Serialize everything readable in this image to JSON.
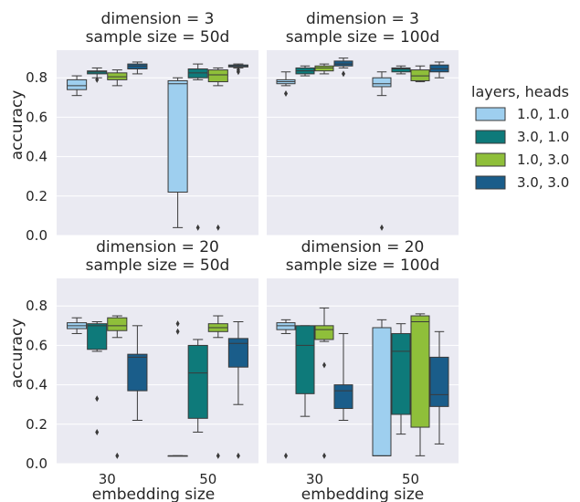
{
  "chart_data": {
    "type": "boxplot",
    "hue_title": "layers, heads",
    "series_names": [
      "1.0, 1.0",
      "3.0, 1.0",
      "1.0, 3.0",
      "3.0, 3.0"
    ],
    "colors": [
      "#9ecfef",
      "#0e7a7a",
      "#8fbf3a",
      "#1a5d8a"
    ],
    "categories": [
      "30",
      "50"
    ],
    "xlabel": "embedding size",
    "ylabel": "accuracy",
    "yticks": [
      "0.0",
      "0.2",
      "0.4",
      "0.6",
      "0.8"
    ],
    "ylim": [
      0.0,
      0.94
    ],
    "panels": [
      {
        "title_line1": "dimension = 3",
        "title_line2": "sample size = 50d",
        "boxes": [
          [
            {
              "wlo": 0.71,
              "q1": 0.74,
              "med": 0.76,
              "q3": 0.79,
              "whi": 0.81,
              "fliers": []
            },
            {
              "wlo": 0.8,
              "q1": 0.82,
              "med": 0.83,
              "q3": 0.835,
              "whi": 0.85,
              "fliers": [
                0.79
              ]
            },
            {
              "wlo": 0.76,
              "q1": 0.79,
              "med": 0.805,
              "q3": 0.825,
              "whi": 0.84,
              "fliers": []
            },
            {
              "wlo": 0.82,
              "q1": 0.845,
              "med": 0.86,
              "q3": 0.87,
              "whi": 0.88,
              "fliers": []
            }
          ],
          [
            {
              "wlo": 0.04,
              "q1": 0.22,
              "med": 0.77,
              "q3": 0.785,
              "whi": 0.8,
              "fliers": []
            },
            {
              "wlo": 0.79,
              "q1": 0.8,
              "med": 0.825,
              "q3": 0.845,
              "whi": 0.87,
              "fliers": [
                0.04
              ]
            },
            {
              "wlo": 0.76,
              "q1": 0.78,
              "med": 0.815,
              "q3": 0.84,
              "whi": 0.85,
              "fliers": [
                0.04
              ]
            },
            {
              "wlo": 0.85,
              "q1": 0.855,
              "med": 0.86,
              "q3": 0.865,
              "whi": 0.87,
              "fliers": [
                0.84,
                0.83
              ]
            }
          ]
        ]
      },
      {
        "title_line1": "dimension = 3",
        "title_line2": "sample size = 100d",
        "boxes": [
          [
            {
              "wlo": 0.76,
              "q1": 0.77,
              "med": 0.78,
              "q3": 0.79,
              "whi": 0.83,
              "fliers": [
                0.72
              ]
            },
            {
              "wlo": 0.81,
              "q1": 0.82,
              "med": 0.835,
              "q3": 0.85,
              "whi": 0.86,
              "fliers": []
            },
            {
              "wlo": 0.82,
              "q1": 0.835,
              "med": 0.85,
              "q3": 0.86,
              "whi": 0.87,
              "fliers": []
            },
            {
              "wlo": 0.85,
              "q1": 0.86,
              "med": 0.87,
              "q3": 0.885,
              "whi": 0.9,
              "fliers": [
                0.82
              ]
            }
          ],
          [
            {
              "wlo": 0.71,
              "q1": 0.755,
              "med": 0.77,
              "q3": 0.8,
              "whi": 0.83,
              "fliers": [
                0.04
              ]
            },
            {
              "wlo": 0.82,
              "q1": 0.83,
              "med": 0.845,
              "q3": 0.85,
              "whi": 0.86,
              "fliers": []
            },
            {
              "wlo": 0.78,
              "q1": 0.785,
              "med": 0.81,
              "q3": 0.84,
              "whi": 0.86,
              "fliers": []
            },
            {
              "wlo": 0.8,
              "q1": 0.83,
              "med": 0.845,
              "q3": 0.865,
              "whi": 0.88,
              "fliers": []
            }
          ]
        ]
      },
      {
        "title_line1": "dimension = 20",
        "title_line2": "sample size = 50d",
        "boxes": [
          [
            {
              "wlo": 0.66,
              "q1": 0.685,
              "med": 0.7,
              "q3": 0.715,
              "whi": 0.74,
              "fliers": []
            },
            {
              "wlo": 0.57,
              "q1": 0.58,
              "med": 0.7,
              "q3": 0.71,
              "whi": 0.72,
              "fliers": [
                0.33,
                0.16
              ]
            },
            {
              "wlo": 0.64,
              "q1": 0.675,
              "med": 0.7,
              "q3": 0.74,
              "whi": 0.75,
              "fliers": [
                0.04
              ]
            },
            {
              "wlo": 0.22,
              "q1": 0.37,
              "med": 0.54,
              "q3": 0.555,
              "whi": 0.7,
              "fliers": []
            }
          ],
          [
            {
              "wlo": 0.04,
              "q1": 0.04,
              "med": 0.04,
              "q3": 0.04,
              "whi": 0.04,
              "fliers": [
                0.71,
                0.67
              ]
            },
            {
              "wlo": 0.16,
              "q1": 0.23,
              "med": 0.46,
              "q3": 0.6,
              "whi": 0.63,
              "fliers": []
            },
            {
              "wlo": 0.64,
              "q1": 0.67,
              "med": 0.69,
              "q3": 0.71,
              "whi": 0.75,
              "fliers": [
                0.04
              ]
            },
            {
              "wlo": 0.3,
              "q1": 0.49,
              "med": 0.61,
              "q3": 0.635,
              "whi": 0.72,
              "fliers": [
                0.04
              ]
            }
          ]
        ]
      },
      {
        "title_line1": "dimension = 20",
        "title_line2": "sample size = 100d",
        "boxes": [
          [
            {
              "wlo": 0.66,
              "q1": 0.68,
              "med": 0.7,
              "q3": 0.715,
              "whi": 0.73,
              "fliers": [
                0.04
              ]
            },
            {
              "wlo": 0.24,
              "q1": 0.355,
              "med": 0.6,
              "q3": 0.7,
              "whi": 0.7,
              "fliers": []
            },
            {
              "wlo": 0.62,
              "q1": 0.63,
              "med": 0.68,
              "q3": 0.7,
              "whi": 0.79,
              "fliers": [
                0.5,
                0.04
              ]
            },
            {
              "wlo": 0.22,
              "q1": 0.28,
              "med": 0.37,
              "q3": 0.4,
              "whi": 0.66,
              "fliers": []
            }
          ],
          [
            {
              "wlo": 0.04,
              "q1": 0.04,
              "med": 0.04,
              "q3": 0.69,
              "whi": 0.73,
              "fliers": []
            },
            {
              "wlo": 0.15,
              "q1": 0.25,
              "med": 0.57,
              "q3": 0.66,
              "whi": 0.71,
              "fliers": []
            },
            {
              "wlo": 0.04,
              "q1": 0.185,
              "med": 0.72,
              "q3": 0.75,
              "whi": 0.76,
              "fliers": []
            },
            {
              "wlo": 0.1,
              "q1": 0.29,
              "med": 0.35,
              "q3": 0.54,
              "whi": 0.67,
              "fliers": []
            }
          ]
        ]
      }
    ]
  }
}
